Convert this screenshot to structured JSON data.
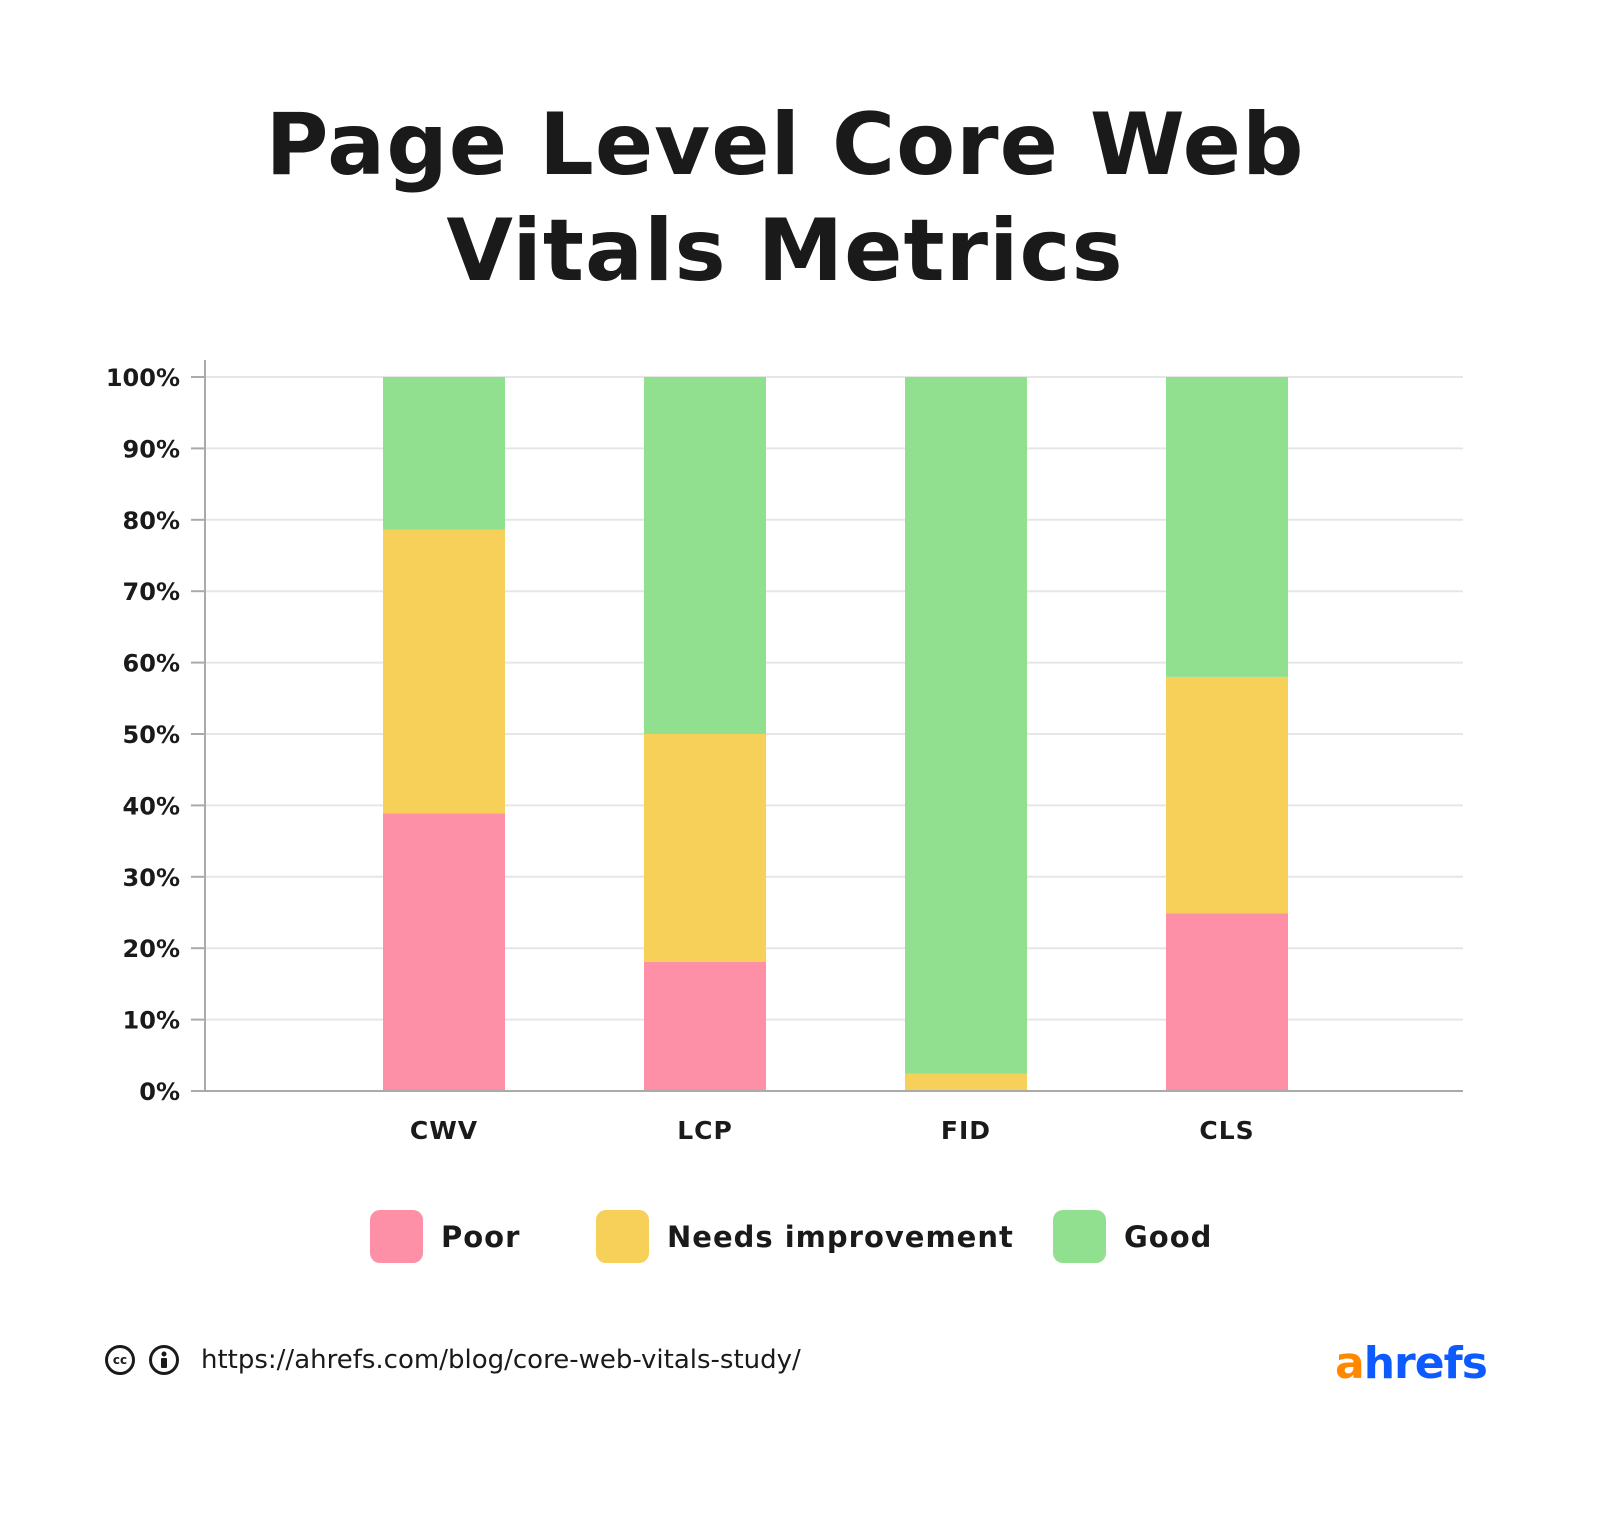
{
  "chart_data": {
    "type": "bar",
    "stacked": true,
    "title": "Page Level Core Web Vitals Metrics",
    "categories": [
      "CWV",
      "LCP",
      "FID",
      "CLS"
    ],
    "series": [
      {
        "name": "Poor",
        "color": "#fd8fa7",
        "values": [
          38.9,
          18.1,
          0,
          24.9
        ]
      },
      {
        "name": "Needs improvement",
        "color": "#f6d058",
        "values": [
          39.7,
          31.9,
          2.4,
          33.1
        ]
      },
      {
        "name": "Good",
        "color": "#90e090",
        "values": [
          21.4,
          50.0,
          97.6,
          42.0
        ]
      }
    ],
    "yticks": [
      "0%",
      "10%",
      "20%",
      "30%",
      "40%",
      "50%",
      "60%",
      "70%",
      "80%",
      "90%",
      "100%"
    ],
    "ylim": [
      0,
      100
    ],
    "grid": true,
    "legend": "bottom"
  },
  "title_lines": [
    "Page Level Core Web",
    "Vitals Metrics"
  ],
  "footer": {
    "url": "https://ahrefs.com/blog/core-web-vitals-study/",
    "icons": [
      "creative-commons-icon",
      "attribution-icon"
    ],
    "cc_glyph": "cc"
  },
  "logo": {
    "a": "a",
    "rest": "hrefs",
    "orange": "#ff8800",
    "blue": "#0d5bff"
  }
}
